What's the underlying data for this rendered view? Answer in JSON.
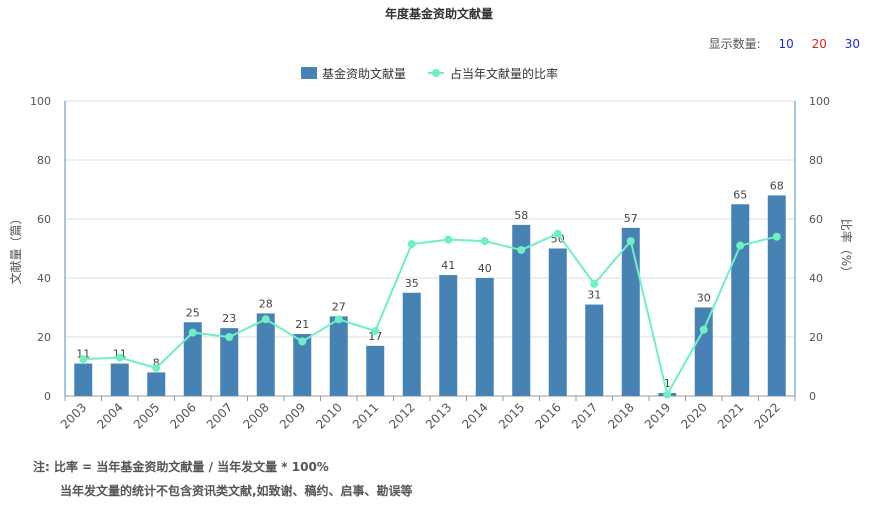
{
  "title": "年度基金资助文献量",
  "display_count": {
    "label": "显示数量:",
    "options": [
      {
        "value": "10",
        "color": "#1a2ccc"
      },
      {
        "value": "20",
        "color": "#e02020"
      },
      {
        "value": "30",
        "color": "#1a2ccc"
      }
    ]
  },
  "notes": {
    "line1": "注:   比率 = 当年基金资助文献量 / 当年发文量 * 100%",
    "line2": "当年发文量的统计不包含资讯类文献,如致谢、稿约、启事、勘误等"
  },
  "colors": {
    "bar": "#4682b4",
    "line": "#6ef0c3",
    "axis": "#4a8fc4"
  },
  "chart_data": {
    "type": "bar",
    "categories": [
      "2003",
      "2004",
      "2005",
      "2006",
      "2007",
      "2008",
      "2009",
      "2010",
      "2011",
      "2012",
      "2013",
      "2014",
      "2015",
      "2016",
      "2017",
      "2018",
      "2019",
      "2020",
      "2021",
      "2022"
    ],
    "series": [
      {
        "name": "基金资助文献量",
        "type": "bar",
        "axis": "left",
        "values": [
          11,
          11,
          8,
          25,
          23,
          28,
          21,
          27,
          17,
          35,
          41,
          40,
          58,
          50,
          31,
          57,
          1,
          30,
          65,
          68
        ]
      },
      {
        "name": "占当年文献量的比率",
        "type": "line",
        "axis": "right",
        "values": [
          12.5,
          13,
          9.5,
          21.5,
          20,
          26,
          18.5,
          26,
          22,
          51.5,
          53,
          52.5,
          49.5,
          55,
          38,
          52.5,
          0.5,
          22.5,
          51,
          54
        ]
      }
    ],
    "ylabel": "文献量（篇）",
    "y2label": "比率（%）",
    "ylim": [
      0,
      100
    ],
    "y2lim": [
      0,
      100
    ],
    "yticks": [
      0,
      20,
      40,
      60,
      80,
      100
    ],
    "grid": true,
    "legend": "top-center"
  }
}
